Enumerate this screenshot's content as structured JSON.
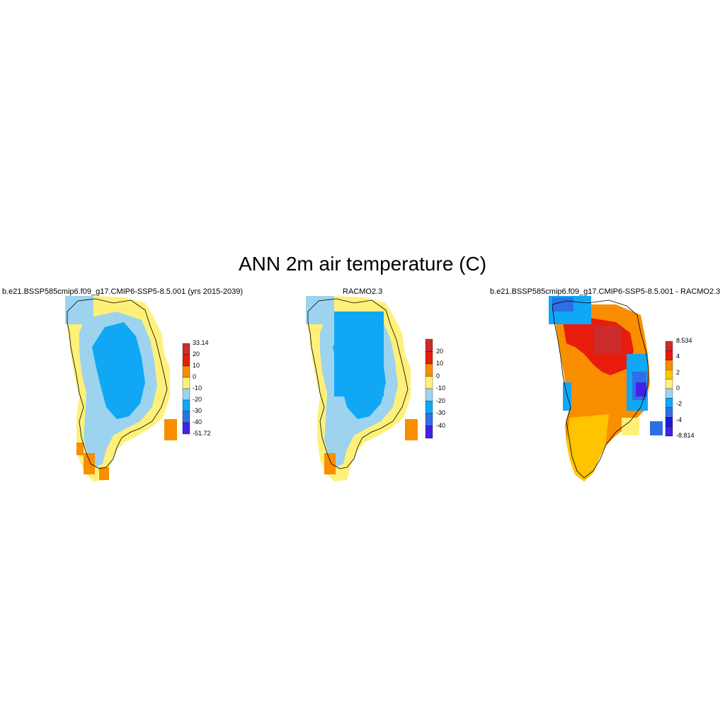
{
  "figure": {
    "title": "ANN 2m air temperature (C)"
  },
  "panels": [
    {
      "id": "model",
      "title": "b.e21.BSSP585cmip6.f09_g17.CMIP6-SSP5-8.5.001 (yrs 2015-2039)",
      "colorbar": {
        "labels": [
          "33.14",
          "20",
          "10",
          "0",
          "-10",
          "-20",
          "-30",
          "-40",
          "-51.72"
        ],
        "colors": [
          "#cc2b2b",
          "#e81c0c",
          "#f88e00",
          "#fff07a",
          "#9dd3ef",
          "#10a7f4",
          "#2f6fe6",
          "#4420e8"
        ]
      }
    },
    {
      "id": "obs",
      "title": "RACMO2.3",
      "colorbar": {
        "labels": [
          "20",
          "10",
          "0",
          "-10",
          "-20",
          "-30",
          "-40"
        ],
        "colors": [
          "#cc2b2b",
          "#e81c0c",
          "#f88e00",
          "#fff07a",
          "#9dd3ef",
          "#10a7f4",
          "#2f6fe6",
          "#4420e8"
        ]
      }
    },
    {
      "id": "diff",
      "title": "b.e21.BSSP585cmip6.f09_g17.CMIP6-SSP5-8.5.001 - RACMO2.3",
      "colorbar": {
        "labels": [
          "8.534",
          "4",
          "2",
          "0",
          "-2",
          "-4",
          "-8.814"
        ],
        "colors": [
          "#cc2b2b",
          "#e81c0c",
          "#f88e00",
          "#ffc400",
          "#fff07a",
          "#9dd3ef",
          "#10a7f4",
          "#2f6fe6",
          "#1a1ad8",
          "#4420e8"
        ]
      }
    }
  ]
}
